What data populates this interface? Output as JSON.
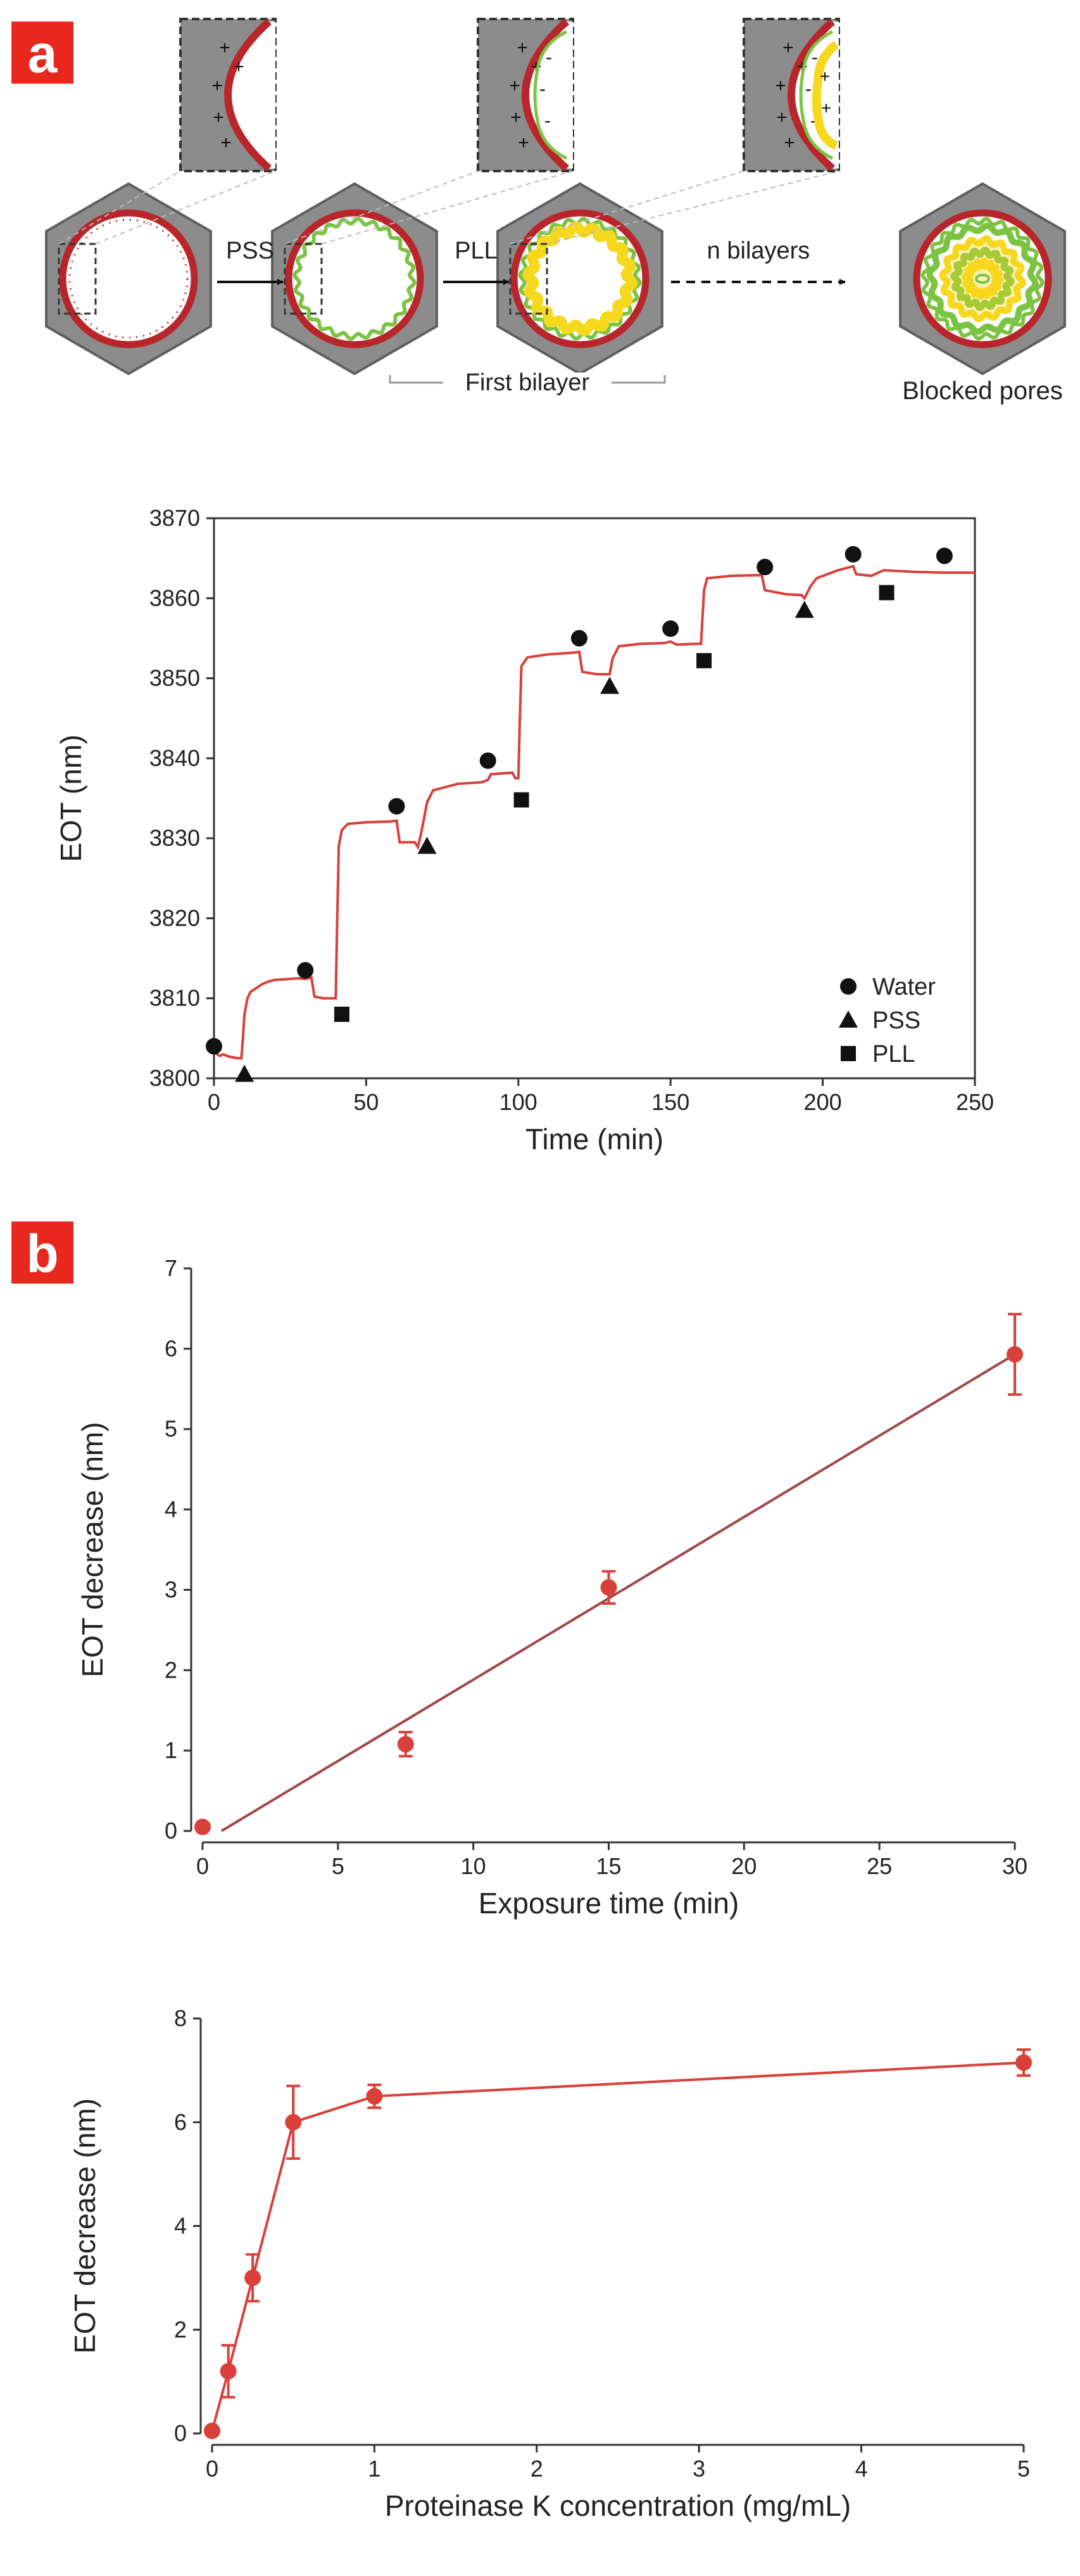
{
  "panels": {
    "a": {
      "label": "a"
    },
    "b": {
      "label": "b"
    }
  },
  "colors": {
    "accent_red": "#E8281E",
    "pore_red": "#B8262B",
    "pss_green": "#7BC443",
    "pll_yellow": "#F6D81E",
    "hex_gray": "#8C8C8C",
    "data_red": "#D9403A",
    "fit_line": "#A0474A"
  },
  "schematic": {
    "steps": [
      "PSS",
      "PLL",
      "n bilayers"
    ],
    "bracket_label": "First bilayer",
    "final_label": "Blocked pores",
    "charge_plus": "+",
    "charge_minus": "-"
  },
  "chart_data": [
    {
      "type": "line",
      "id": "eot-time",
      "xlabel": "Time (min)",
      "ylabel": "EOT (nm)",
      "xlim": [
        0,
        250
      ],
      "ylim": [
        3800,
        3870
      ],
      "xticks": [
        0,
        50,
        100,
        150,
        200,
        250
      ],
      "yticks": [
        3800,
        3810,
        3820,
        3830,
        3840,
        3850,
        3860,
        3870
      ],
      "trace": [
        [
          0,
          3803.3
        ],
        [
          1,
          3803.0
        ],
        [
          2,
          3802.8
        ],
        [
          3,
          3803.0
        ],
        [
          5,
          3802.7
        ],
        [
          8,
          3802.5
        ],
        [
          9,
          3802.5
        ],
        [
          9.5,
          3805
        ],
        [
          10,
          3808
        ],
        [
          11,
          3810
        ],
        [
          12,
          3810.8
        ],
        [
          14,
          3811.3
        ],
        [
          16,
          3811.8
        ],
        [
          18,
          3812.1
        ],
        [
          20,
          3812.3
        ],
        [
          24,
          3812.4
        ],
        [
          28,
          3812.5
        ],
        [
          30,
          3812.4
        ],
        [
          32,
          3812.6
        ],
        [
          33,
          3810.2
        ],
        [
          36,
          3810.0
        ],
        [
          40,
          3810.0
        ],
        [
          40.5,
          3820
        ],
        [
          41,
          3829
        ],
        [
          42,
          3831
        ],
        [
          44,
          3831.8
        ],
        [
          50,
          3832.0
        ],
        [
          58,
          3832.1
        ],
        [
          60,
          3832.2
        ],
        [
          61,
          3829.5
        ],
        [
          66,
          3829.5
        ],
        [
          67,
          3828.9
        ],
        [
          68,
          3830.5
        ],
        [
          69,
          3832.5
        ],
        [
          70,
          3834.5
        ],
        [
          72,
          3836.0
        ],
        [
          80,
          3836.8
        ],
        [
          88,
          3837.0
        ],
        [
          90,
          3837.3
        ],
        [
          91,
          3838.0
        ],
        [
          98,
          3838.2
        ],
        [
          99,
          3837.5
        ],
        [
          100,
          3837.5
        ],
        [
          100.5,
          3845
        ],
        [
          101,
          3851.5
        ],
        [
          103,
          3852.6
        ],
        [
          110,
          3853.0
        ],
        [
          118,
          3853.2
        ],
        [
          120,
          3853.3
        ],
        [
          121,
          3850.8
        ],
        [
          126,
          3850.5
        ],
        [
          130,
          3850.5
        ],
        [
          131,
          3852.5
        ],
        [
          133,
          3854.0
        ],
        [
          140,
          3854.3
        ],
        [
          148,
          3854.4
        ],
        [
          150,
          3854.6
        ],
        [
          152,
          3854.2
        ],
        [
          158,
          3854.3
        ],
        [
          160,
          3854.3
        ],
        [
          161,
          3861.0
        ],
        [
          162,
          3862.5
        ],
        [
          170,
          3862.8
        ],
        [
          180,
          3862.9
        ],
        [
          181,
          3861.0
        ],
        [
          188,
          3860.5
        ],
        [
          193,
          3860.4
        ],
        [
          194,
          3860.0
        ],
        [
          196,
          3861.5
        ],
        [
          198,
          3862.5
        ],
        [
          205,
          3863.5
        ],
        [
          210,
          3864.0
        ],
        [
          211,
          3863.0
        ],
        [
          216,
          3862.8
        ],
        [
          220,
          3863.5
        ],
        [
          230,
          3863.3
        ],
        [
          240,
          3863.2
        ],
        [
          250,
          3863.2
        ]
      ],
      "series": [
        {
          "name": "Water",
          "marker": "circle",
          "x": [
            0,
            30,
            60,
            90,
            120,
            150,
            181,
            210,
            240
          ],
          "y": [
            3804,
            3813.5,
            3834,
            3839.7,
            3855,
            3856.2,
            3863.9,
            3865.5,
            3865.3
          ]
        },
        {
          "name": "PSS",
          "marker": "triangle",
          "x": [
            10,
            70,
            130,
            194
          ],
          "y": [
            3800.5,
            3829,
            3849,
            3858.5
          ]
        },
        {
          "name": "PLL",
          "marker": "square",
          "x": [
            42,
            101,
            161,
            221
          ],
          "y": [
            3808,
            3834.8,
            3852.2,
            3860.7
          ]
        }
      ],
      "legend": {
        "placement": "bottom-right"
      }
    },
    {
      "type": "scatter",
      "id": "eot-exposure",
      "xlabel": "Exposure time (min)",
      "ylabel": "EOT decrease (nm)",
      "xlim": [
        0,
        30
      ],
      "ylim": [
        0,
        7
      ],
      "xticks": [
        0,
        5,
        10,
        15,
        20,
        25,
        30
      ],
      "yticks": [
        0,
        1,
        2,
        3,
        4,
        5,
        6,
        7
      ],
      "points": [
        {
          "x": 0,
          "y": 0.05,
          "err": 0
        },
        {
          "x": 7.5,
          "y": 1.08,
          "err": 0.15
        },
        {
          "x": 15,
          "y": 3.03,
          "err": 0.2
        },
        {
          "x": 30,
          "y": 5.93,
          "err": 0.5
        }
      ],
      "fit": {
        "x": [
          0.7,
          30
        ],
        "y": [
          0,
          5.93
        ]
      }
    },
    {
      "type": "line",
      "id": "eot-concentration",
      "xlabel": "Proteinase K concentration (mg/mL)",
      "ylabel": "EOT decrease (nm)",
      "xlim": [
        0,
        5
      ],
      "ylim": [
        0,
        8
      ],
      "xticks": [
        0,
        1,
        2,
        3,
        4,
        5
      ],
      "yticks": [
        0,
        2,
        4,
        6,
        8
      ],
      "points": [
        {
          "x": 0,
          "y": 0.05,
          "err": 0
        },
        {
          "x": 0.1,
          "y": 1.2,
          "err": 0.5
        },
        {
          "x": 0.25,
          "y": 3.0,
          "err": 0.45
        },
        {
          "x": 0.5,
          "y": 6.0,
          "err": 0.7
        },
        {
          "x": 1,
          "y": 6.5,
          "err": 0.22
        },
        {
          "x": 5,
          "y": 7.15,
          "err": 0.25
        }
      ]
    }
  ]
}
